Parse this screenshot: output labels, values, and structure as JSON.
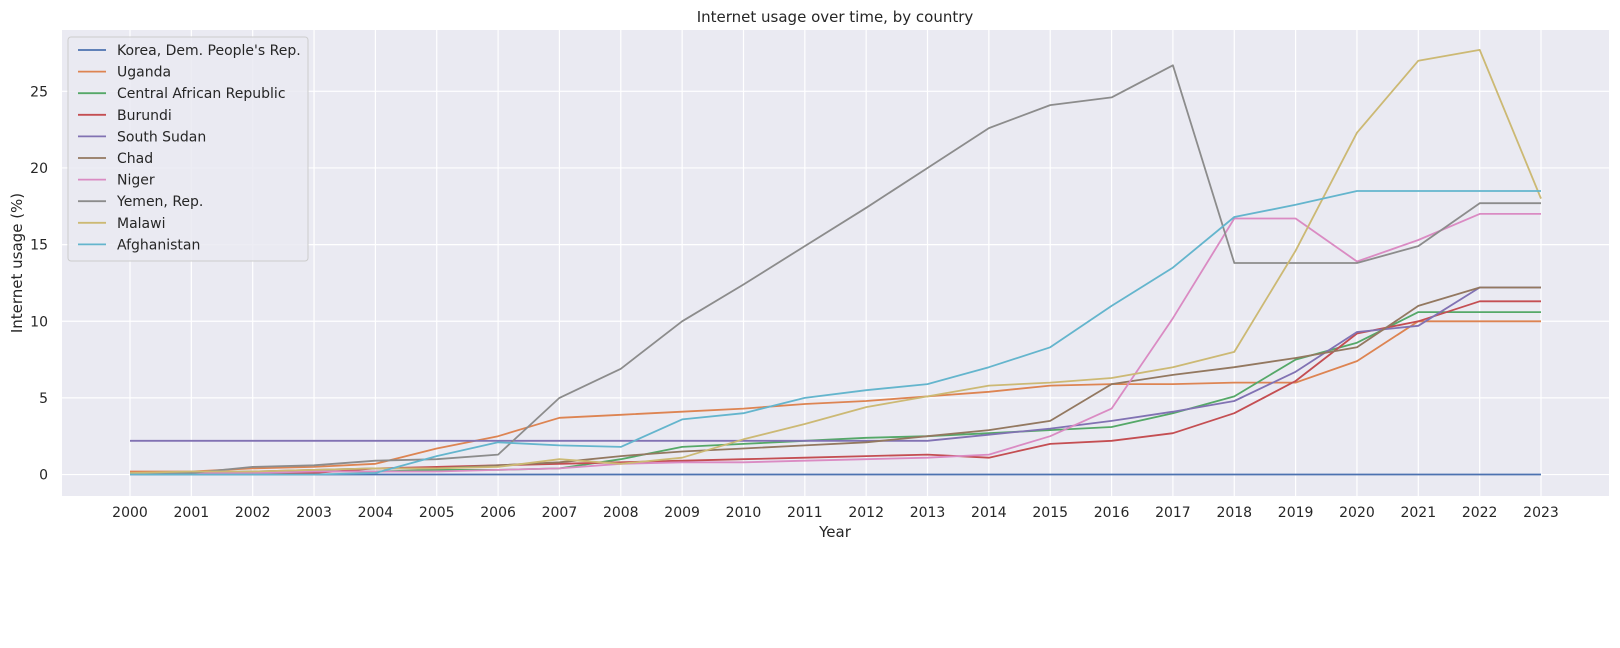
{
  "chart_data": {
    "type": "line",
    "title": "Internet usage over time, by country",
    "xlabel": "Year",
    "ylabel": "Internet usage (%)",
    "x": [
      2000,
      2001,
      2002,
      2003,
      2004,
      2005,
      2006,
      2007,
      2008,
      2009,
      2010,
      2011,
      2012,
      2013,
      2014,
      2015,
      2016,
      2017,
      2018,
      2019,
      2020,
      2021,
      2022,
      2023
    ],
    "ylim": [
      -1.4,
      29.0
    ],
    "yticks": [
      0,
      5,
      10,
      15,
      20,
      25
    ],
    "grid": true,
    "legend_position": "top-left",
    "colors": {
      "plot_background": "#eaeaf2",
      "grid": "#ffffff"
    },
    "series": [
      {
        "name": "Korea, Dem. People's Rep.",
        "color": "#4c72b0",
        "values": [
          0,
          0,
          0,
          0,
          0,
          0,
          0,
          0,
          0,
          0,
          0,
          0,
          0,
          0,
          0,
          0,
          0,
          0,
          0,
          0,
          0,
          0,
          0,
          0
        ]
      },
      {
        "name": "Uganda",
        "color": "#dd8452",
        "values": [
          0.2,
          0.2,
          0.4,
          0.5,
          0.7,
          1.7,
          2.5,
          3.7,
          3.9,
          4.1,
          4.3,
          4.6,
          4.8,
          5.1,
          5.4,
          5.8,
          5.9,
          5.9,
          6.0,
          6.0,
          7.4,
          10.0,
          10.0,
          10.0
        ]
      },
      {
        "name": "Central African Republic",
        "color": "#55a868",
        "values": [
          0.1,
          0.1,
          0.2,
          0.2,
          0.2,
          0.3,
          0.3,
          0.4,
          1.0,
          1.8,
          2.0,
          2.2,
          2.4,
          2.5,
          2.7,
          2.9,
          3.1,
          4.0,
          5.1,
          7.5,
          8.6,
          10.6,
          10.6,
          10.6
        ]
      },
      {
        "name": "Burundi",
        "color": "#c44e52",
        "values": [
          0.1,
          0.1,
          0.1,
          0.1,
          0.4,
          0.5,
          0.6,
          0.7,
          0.8,
          0.9,
          1.0,
          1.1,
          1.2,
          1.3,
          1.1,
          2.0,
          2.2,
          2.7,
          4.0,
          6.1,
          9.2,
          10.0,
          11.3,
          11.3
        ]
      },
      {
        "name": "South Sudan",
        "color": "#8172b3",
        "values": [
          2.2,
          2.2,
          2.2,
          2.2,
          2.2,
          2.2,
          2.2,
          2.2,
          2.2,
          2.2,
          2.2,
          2.2,
          2.2,
          2.2,
          2.6,
          3.0,
          3.5,
          4.1,
          4.8,
          6.7,
          9.3,
          9.7,
          12.2,
          12.2
        ]
      },
      {
        "name": "Chad",
        "color": "#937860",
        "values": [
          0.1,
          0.1,
          0.2,
          0.3,
          0.4,
          0.4,
          0.6,
          0.8,
          1.2,
          1.5,
          1.7,
          1.9,
          2.1,
          2.5,
          2.9,
          3.5,
          5.9,
          6.5,
          7.0,
          7.6,
          8.3,
          11.0,
          12.2,
          12.2
        ]
      },
      {
        "name": "Niger",
        "color": "#da8bc3",
        "values": [
          0.0,
          0.1,
          0.1,
          0.2,
          0.2,
          0.2,
          0.3,
          0.4,
          0.7,
          0.8,
          0.8,
          0.9,
          1.0,
          1.1,
          1.3,
          2.5,
          4.3,
          10.2,
          16.7,
          16.7,
          13.9,
          15.3,
          17.0,
          17.0
        ]
      },
      {
        "name": "Yemen, Rep.",
        "color": "#8c8c8c",
        "values": [
          0.1,
          0.1,
          0.5,
          0.6,
          0.9,
          1.0,
          1.3,
          5.0,
          6.9,
          10.0,
          12.4,
          14.9,
          17.4,
          20.0,
          22.6,
          24.1,
          24.6,
          26.7,
          13.8,
          13.8,
          13.8,
          14.9,
          17.7,
          17.7
        ]
      },
      {
        "name": "Malawi",
        "color": "#ccb974",
        "values": [
          0.1,
          0.2,
          0.2,
          0.3,
          0.4,
          0.4,
          0.5,
          1.0,
          0.7,
          1.1,
          2.3,
          3.3,
          4.4,
          5.1,
          5.8,
          6.0,
          6.3,
          7.0,
          8.0,
          14.6,
          22.3,
          27.0,
          27.7,
          18.0
        ]
      },
      {
        "name": "Afghanistan",
        "color": "#64b5cd",
        "values": [
          0.0,
          0.0,
          0.0,
          0.0,
          0.1,
          1.2,
          2.1,
          1.9,
          1.8,
          3.6,
          4.0,
          5.0,
          5.5,
          5.9,
          7.0,
          8.3,
          11.0,
          13.5,
          16.8,
          17.6,
          18.5,
          18.5,
          18.5,
          18.5
        ]
      }
    ]
  }
}
